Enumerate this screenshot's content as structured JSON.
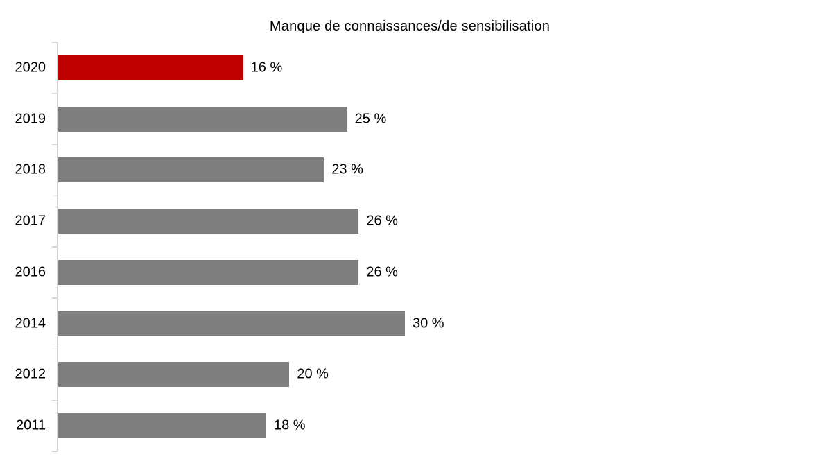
{
  "chart_data": {
    "type": "bar",
    "orientation": "horizontal",
    "title": "Manque de connaissances/de sensibilisation",
    "categories": [
      "2020",
      "2019",
      "2018",
      "2017",
      "2016",
      "2014",
      "2012",
      "2011"
    ],
    "values": [
      16,
      25,
      23,
      26,
      26,
      30,
      20,
      18
    ],
    "value_labels": [
      "16 %",
      "25 %",
      "23 %",
      "26 %",
      "26 %",
      "30 %",
      "20 %",
      "18 %"
    ],
    "highlight_category": "2020",
    "colors": {
      "highlight": "#C00000",
      "default": "#7F7F7F",
      "axis": "#D6D6D6",
      "text": "#000000"
    },
    "xlabel": "",
    "ylabel": "",
    "xlim": [
      0,
      60
    ],
    "grid": false,
    "legend": false,
    "data_labels_shown": true
  }
}
